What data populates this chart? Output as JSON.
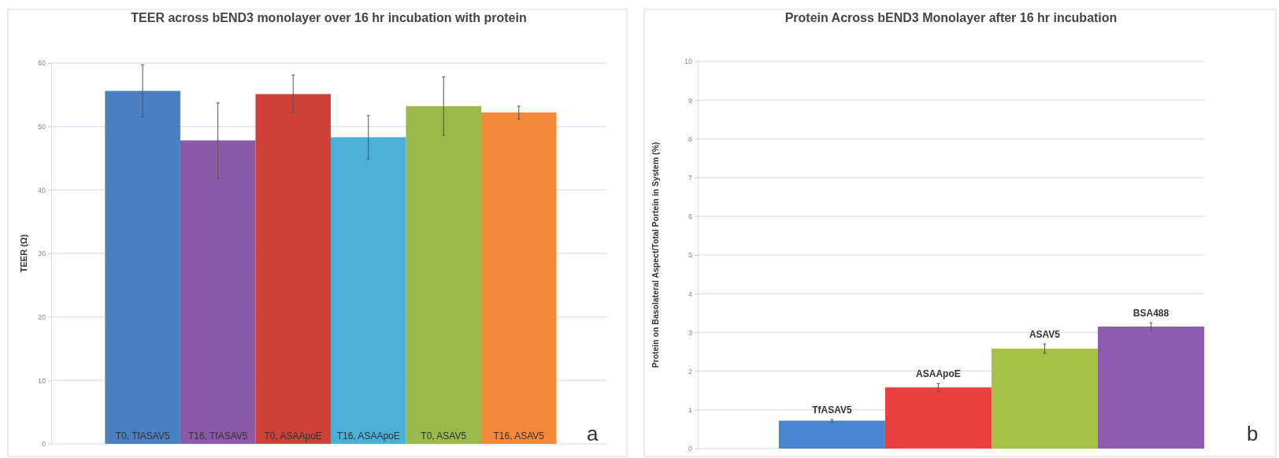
{
  "chart_data": [
    {
      "type": "bar",
      "title": "TEER across bEND3 monolayer over 16 hr incubation with protein",
      "ylabel": "TEER (Ω)",
      "categories": [
        "T0, TfASAV5",
        "T16, TfASAV5",
        "T0, ASAApoE",
        "T16, ASAApoE",
        "T0, ASAV5",
        "T16, ASAV5"
      ],
      "values": [
        55.6,
        47.8,
        55.1,
        48.3,
        53.2,
        52.2
      ],
      "errors": [
        4.1,
        5.9,
        3.0,
        3.4,
        4.6,
        1.0
      ],
      "colors": [
        "#4a7fc1",
        "#8a5aa8",
        "#cf4138",
        "#4ab0d6",
        "#9bb84a",
        "#f5893a"
      ],
      "ylim": [
        0,
        60
      ],
      "yticks": [
        0,
        10,
        20,
        30,
        40,
        50,
        60
      ],
      "grid": "y",
      "annotations": [
        "a"
      ]
    },
    {
      "type": "bar",
      "title": "Protein Across bEND3 Monolayer after 16 hr incubation",
      "ylabel": "Protein on Basolateral Aspect/Total Portein in System (%)",
      "categories": [
        "TfASAV5",
        "ASAApoE",
        "ASAV5",
        "BSA488"
      ],
      "values": [
        0.72,
        1.58,
        2.58,
        3.15
      ],
      "errors": [
        0.03,
        0.1,
        0.12,
        0.1
      ],
      "colors": [
        "#4a86cf",
        "#e8403f",
        "#a6c145",
        "#8d5bb0"
      ],
      "ylim": [
        0,
        10
      ],
      "yticks": [
        0,
        1,
        2,
        3,
        4,
        5,
        6,
        7,
        8,
        9,
        10
      ],
      "grid": "y",
      "annotations": [
        "b"
      ]
    }
  ]
}
